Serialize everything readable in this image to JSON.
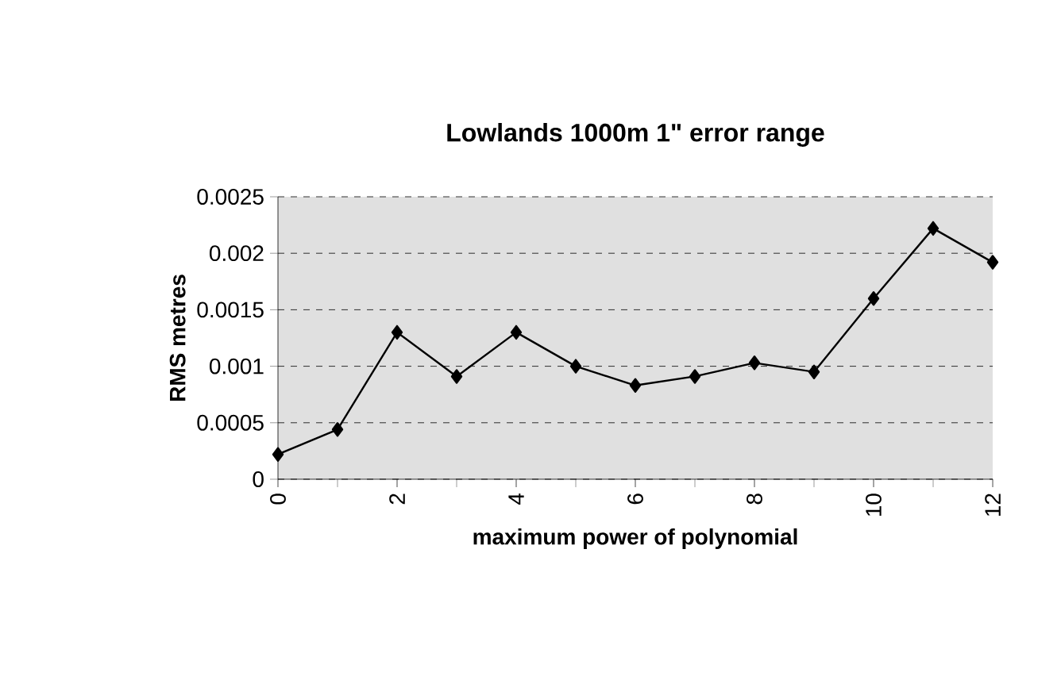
{
  "chart_data": {
    "type": "line",
    "title": "Lowlands    1000m    1\" error range",
    "xlabel": "maximum power of polynomial",
    "ylabel": "RMS metres",
    "x": [
      0,
      1,
      2,
      3,
      4,
      5,
      6,
      7,
      8,
      9,
      10,
      11,
      12
    ],
    "series": [
      {
        "color": "#000000",
        "values": [
          0.00022,
          0.00044,
          0.0013,
          0.00091,
          0.0013,
          0.001,
          0.00083,
          0.00091,
          0.00103,
          0.00095,
          0.0016,
          0.00222,
          0.00192
        ]
      }
    ],
    "xlim": [
      0,
      12
    ],
    "xticks": [
      0,
      2,
      4,
      6,
      8,
      10,
      12
    ],
    "ylim": [
      0,
      0.0025
    ],
    "yticks": [
      0,
      0.0005,
      0.001,
      0.0015,
      0.002,
      0.0025
    ],
    "grid": "y",
    "marker": "diamond",
    "line_style": "solid"
  }
}
